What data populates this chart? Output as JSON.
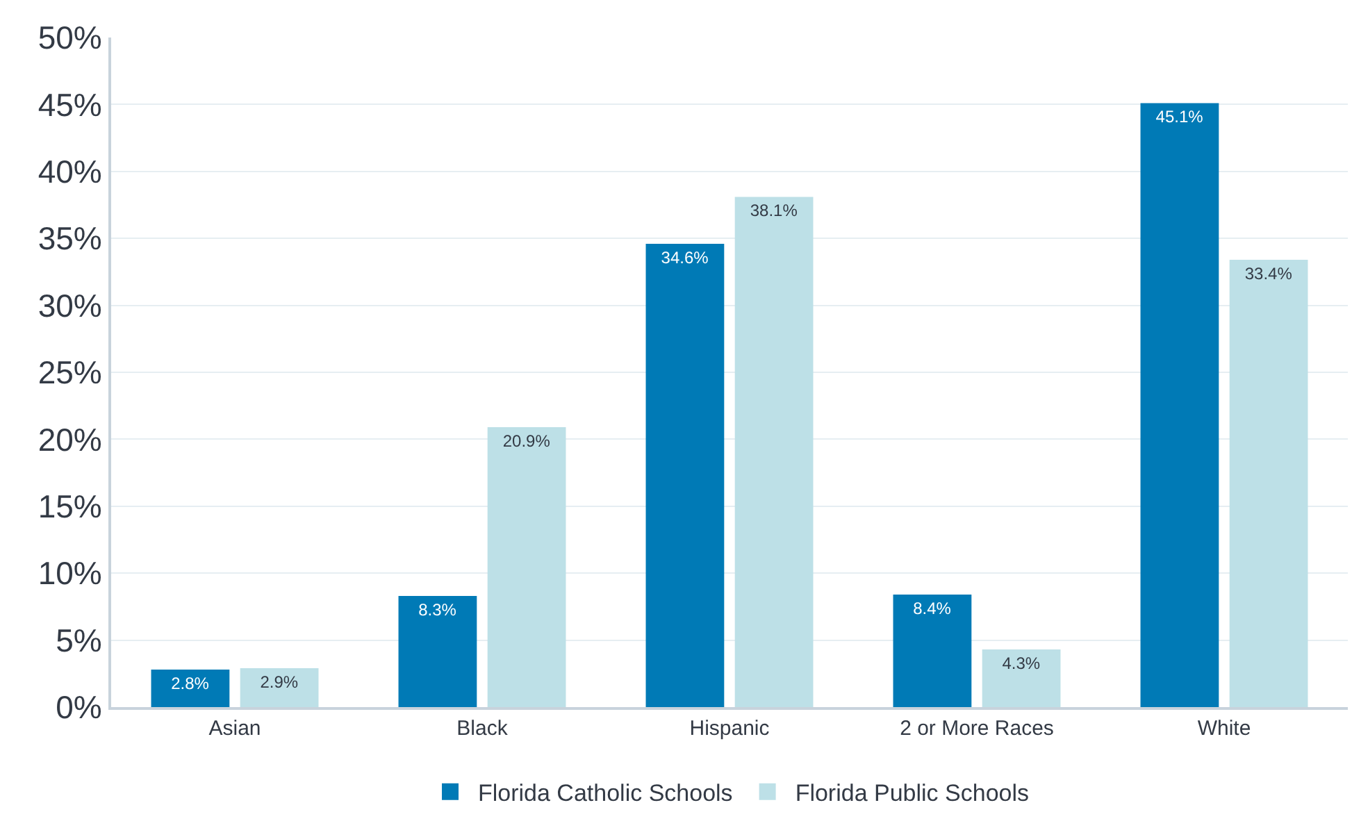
{
  "chart_data": {
    "type": "bar",
    "categories": [
      "Asian",
      "Black",
      "Hispanic",
      "2 or More Races",
      "White"
    ],
    "series": [
      {
        "name": "Florida Catholic Schools",
        "color": "#007ab6",
        "values": [
          2.8,
          8.3,
          34.6,
          8.4,
          45.1
        ],
        "value_labels": [
          "2.8%",
          "8.3%",
          "34.6%",
          "8.4%",
          "45.1%"
        ]
      },
      {
        "name": "Florida Public Schools",
        "color": "#bde0e7",
        "values": [
          2.9,
          20.9,
          38.1,
          4.3,
          33.4
        ],
        "value_labels": [
          "2.9%",
          "20.9%",
          "38.1%",
          "4.3%",
          "33.4%"
        ]
      }
    ],
    "ylim": [
      0,
      50
    ],
    "yticks": [
      {
        "value": 0,
        "label": "0%"
      },
      {
        "value": 5,
        "label": "5%"
      },
      {
        "value": 10,
        "label": "10%"
      },
      {
        "value": 15,
        "label": "15%"
      },
      {
        "value": 20,
        "label": "20%"
      },
      {
        "value": 25,
        "label": "25%"
      },
      {
        "value": 30,
        "label": "30%"
      },
      {
        "value": 35,
        "label": "35%"
      },
      {
        "value": 40,
        "label": "40%"
      },
      {
        "value": 45,
        "label": "45%"
      },
      {
        "value": 50,
        "label": "50%"
      }
    ],
    "grid": "y",
    "legend": "bottom"
  }
}
